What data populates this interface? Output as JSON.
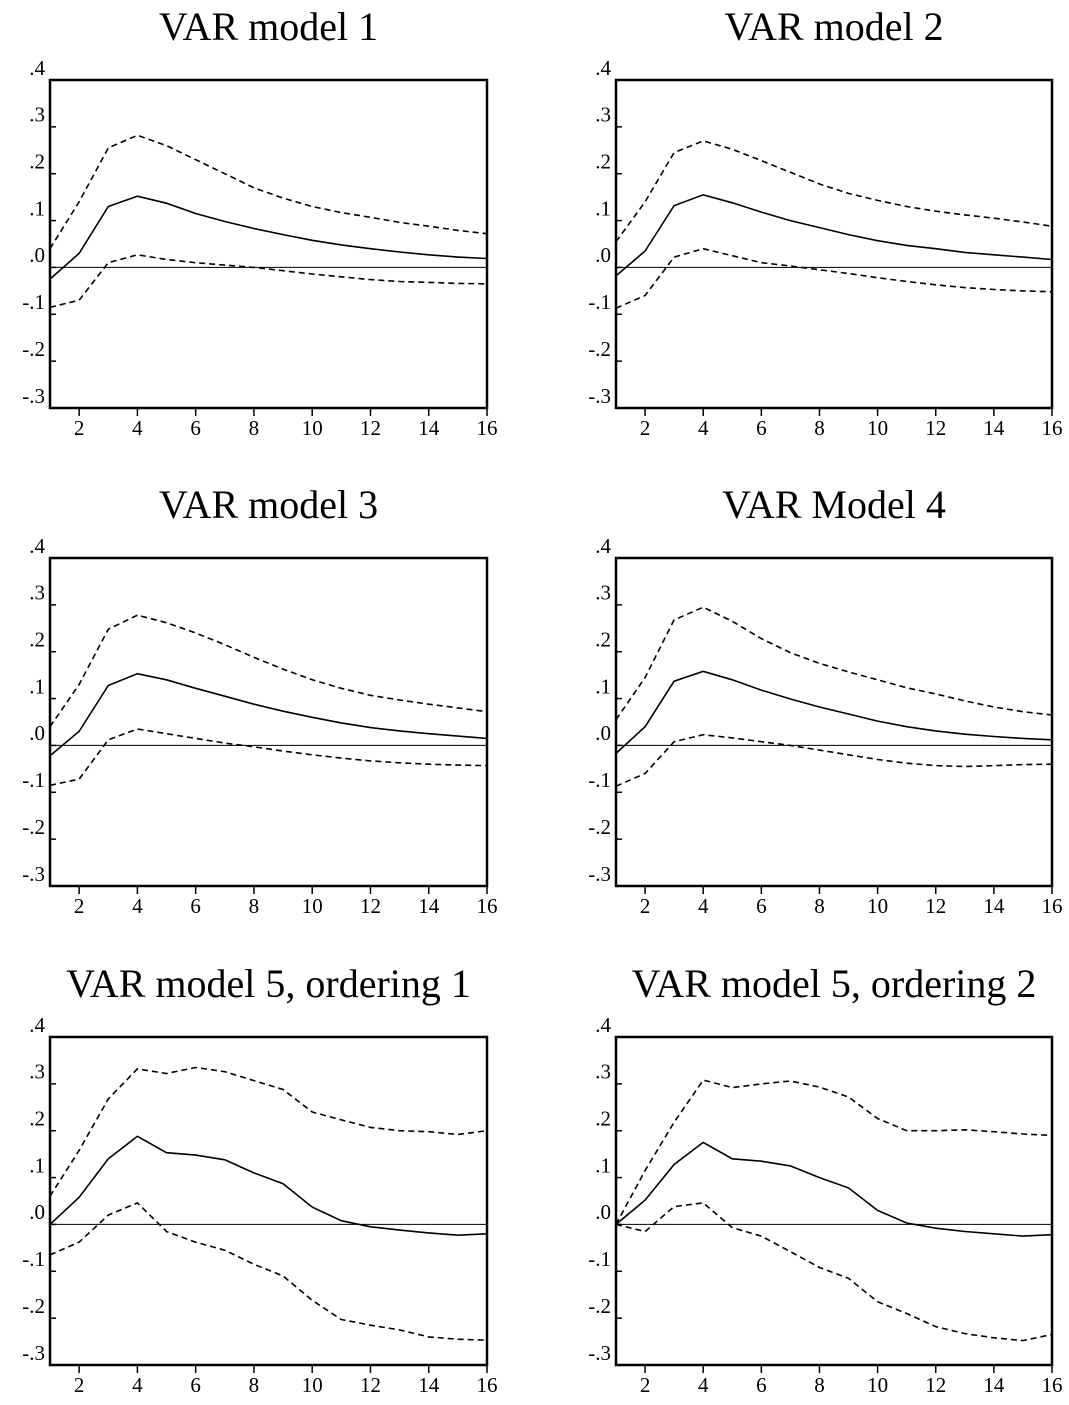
{
  "chart_data": [
    {
      "type": "line",
      "title": "VAR model 1",
      "x": [
        1,
        2,
        3,
        4,
        5,
        6,
        7,
        8,
        9,
        10,
        11,
        12,
        13,
        14,
        15,
        16
      ],
      "xlim": [
        1,
        16
      ],
      "xticks": [
        2,
        4,
        6,
        8,
        10,
        12,
        14,
        16
      ],
      "ylim": [
        -0.3,
        0.4
      ],
      "yticks": [
        {
          "value": -0.3,
          "label": "-.3"
        },
        {
          "value": -0.2,
          "label": "-.2"
        },
        {
          "value": -0.1,
          "label": "-.1"
        },
        {
          "value": 0,
          "label": ".0"
        },
        {
          "value": 0.1,
          "label": ".1"
        },
        {
          "value": 0.2,
          "label": ".2"
        },
        {
          "value": 0.3,
          "label": ".3"
        },
        {
          "value": 0.4,
          "label": ".4"
        }
      ],
      "reference_line": 0,
      "series": [
        {
          "color": "#000000",
          "dash": true,
          "values": [
            0.04,
            0.14,
            0.255,
            0.282,
            0.26,
            0.23,
            0.2,
            0.17,
            0.148,
            0.13,
            0.117,
            0.107,
            0.096,
            0.088,
            0.079,
            0.072
          ]
        },
        {
          "color": "#000000",
          "dash": false,
          "values": [
            -0.025,
            0.03,
            0.13,
            0.152,
            0.137,
            0.115,
            0.098,
            0.083,
            0.07,
            0.058,
            0.048,
            0.04,
            0.033,
            0.027,
            0.022,
            0.019
          ]
        },
        {
          "color": "#000000",
          "dash": true,
          "values": [
            -0.085,
            -0.07,
            0.01,
            0.027,
            0.017,
            0.01,
            0.005,
            0,
            -0.007,
            -0.014,
            -0.02,
            -0.026,
            -0.03,
            -0.032,
            -0.034,
            -0.035
          ]
        }
      ]
    },
    {
      "type": "line",
      "title": "VAR model 2",
      "x": [
        1,
        2,
        3,
        4,
        5,
        6,
        7,
        8,
        9,
        10,
        11,
        12,
        13,
        14,
        15,
        16
      ],
      "xlim": [
        1,
        16
      ],
      "xticks": [
        2,
        4,
        6,
        8,
        10,
        12,
        14,
        16
      ],
      "ylim": [
        -0.3,
        0.4
      ],
      "yticks": [
        {
          "value": -0.3,
          "label": "-.3"
        },
        {
          "value": -0.2,
          "label": "-.2"
        },
        {
          "value": -0.1,
          "label": "-.1"
        },
        {
          "value": 0,
          "label": ".0"
        },
        {
          "value": 0.1,
          "label": ".1"
        },
        {
          "value": 0.2,
          "label": ".2"
        },
        {
          "value": 0.3,
          "label": ".3"
        },
        {
          "value": 0.4,
          "label": ".4"
        }
      ],
      "reference_line": 0,
      "series": [
        {
          "color": "#000000",
          "dash": true,
          "values": [
            0.055,
            0.14,
            0.245,
            0.27,
            0.252,
            0.228,
            0.203,
            0.178,
            0.158,
            0.143,
            0.13,
            0.12,
            0.112,
            0.105,
            0.097,
            0.088
          ]
        },
        {
          "color": "#000000",
          "dash": false,
          "values": [
            -0.018,
            0.035,
            0.132,
            0.155,
            0.138,
            0.118,
            0.1,
            0.085,
            0.07,
            0.057,
            0.047,
            0.04,
            0.032,
            0.027,
            0.022,
            0.017
          ]
        },
        {
          "color": "#000000",
          "dash": true,
          "values": [
            -0.087,
            -0.06,
            0.022,
            0.04,
            0.025,
            0.01,
            0.003,
            -0.005,
            -0.013,
            -0.022,
            -0.03,
            -0.037,
            -0.043,
            -0.047,
            -0.05,
            -0.052
          ]
        }
      ]
    },
    {
      "type": "line",
      "title": "VAR model 3",
      "x": [
        1,
        2,
        3,
        4,
        5,
        6,
        7,
        8,
        9,
        10,
        11,
        12,
        13,
        14,
        15,
        16
      ],
      "xlim": [
        1,
        16
      ],
      "xticks": [
        2,
        4,
        6,
        8,
        10,
        12,
        14,
        16
      ],
      "ylim": [
        -0.3,
        0.4
      ],
      "yticks": [
        {
          "value": -0.3,
          "label": "-.3"
        },
        {
          "value": -0.2,
          "label": "-.2"
        },
        {
          "value": -0.1,
          "label": "-.1"
        },
        {
          "value": 0,
          "label": ".0"
        },
        {
          "value": 0.1,
          "label": ".1"
        },
        {
          "value": 0.2,
          "label": ".2"
        },
        {
          "value": 0.3,
          "label": ".3"
        },
        {
          "value": 0.4,
          "label": ".4"
        }
      ],
      "reference_line": 0,
      "series": [
        {
          "color": "#000000",
          "dash": true,
          "values": [
            0.04,
            0.13,
            0.248,
            0.278,
            0.262,
            0.24,
            0.215,
            0.188,
            0.163,
            0.14,
            0.122,
            0.107,
            0.097,
            0.088,
            0.08,
            0.072
          ]
        },
        {
          "color": "#000000",
          "dash": false,
          "values": [
            -0.022,
            0.03,
            0.128,
            0.153,
            0.14,
            0.122,
            0.105,
            0.088,
            0.073,
            0.06,
            0.048,
            0.038,
            0.031,
            0.025,
            0.02,
            0.015
          ]
        },
        {
          "color": "#000000",
          "dash": true,
          "values": [
            -0.085,
            -0.072,
            0.012,
            0.035,
            0.025,
            0.015,
            0.005,
            -0.003,
            -0.012,
            -0.02,
            -0.027,
            -0.033,
            -0.037,
            -0.04,
            -0.042,
            -0.043
          ]
        }
      ]
    },
    {
      "type": "line",
      "title": "VAR Model 4",
      "x": [
        1,
        2,
        3,
        4,
        5,
        6,
        7,
        8,
        9,
        10,
        11,
        12,
        13,
        14,
        15,
        16
      ],
      "xlim": [
        1,
        16
      ],
      "xticks": [
        2,
        4,
        6,
        8,
        10,
        12,
        14,
        16
      ],
      "ylim": [
        -0.3,
        0.4
      ],
      "yticks": [
        {
          "value": -0.3,
          "label": "-.3"
        },
        {
          "value": -0.2,
          "label": "-.2"
        },
        {
          "value": -0.1,
          "label": "-.1"
        },
        {
          "value": 0,
          "label": ".0"
        },
        {
          "value": 0.1,
          "label": ".1"
        },
        {
          "value": 0.2,
          "label": ".2"
        },
        {
          "value": 0.3,
          "label": ".3"
        },
        {
          "value": 0.4,
          "label": ".4"
        }
      ],
      "reference_line": 0,
      "series": [
        {
          "color": "#000000",
          "dash": true,
          "values": [
            0.055,
            0.145,
            0.268,
            0.295,
            0.265,
            0.228,
            0.198,
            0.175,
            0.157,
            0.14,
            0.123,
            0.11,
            0.095,
            0.082,
            0.072,
            0.065
          ]
        },
        {
          "color": "#000000",
          "dash": false,
          "values": [
            -0.017,
            0.04,
            0.137,
            0.158,
            0.14,
            0.118,
            0.099,
            0.082,
            0.067,
            0.052,
            0.04,
            0.031,
            0.024,
            0.019,
            0.015,
            0.012
          ]
        },
        {
          "color": "#000000",
          "dash": true,
          "values": [
            -0.087,
            -0.06,
            0.008,
            0.023,
            0.016,
            0.008,
            0,
            -0.01,
            -0.02,
            -0.03,
            -0.038,
            -0.043,
            -0.045,
            -0.043,
            -0.041,
            -0.04
          ]
        }
      ]
    },
    {
      "type": "line",
      "title": "VAR model 5, ordering 1",
      "x": [
        1,
        2,
        3,
        4,
        5,
        6,
        7,
        8,
        9,
        10,
        11,
        12,
        13,
        14,
        15,
        16
      ],
      "xlim": [
        1,
        16
      ],
      "xticks": [
        2,
        4,
        6,
        8,
        10,
        12,
        14,
        16
      ],
      "ylim": [
        -0.3,
        0.4
      ],
      "yticks": [
        {
          "value": -0.3,
          "label": "-.3"
        },
        {
          "value": -0.2,
          "label": "-.2"
        },
        {
          "value": -0.1,
          "label": "-.1"
        },
        {
          "value": 0,
          "label": ".0"
        },
        {
          "value": 0.1,
          "label": ".1"
        },
        {
          "value": 0.2,
          "label": ".2"
        },
        {
          "value": 0.3,
          "label": ".3"
        },
        {
          "value": 0.4,
          "label": ".4"
        }
      ],
      "reference_line": 0,
      "series": [
        {
          "color": "#000000",
          "dash": true,
          "values": [
            0.06,
            0.158,
            0.268,
            0.332,
            0.322,
            0.335,
            0.326,
            0.307,
            0.288,
            0.24,
            0.223,
            0.207,
            0.2,
            0.198,
            0.192,
            0.2
          ]
        },
        {
          "color": "#000000",
          "dash": false,
          "values": [
            0,
            0.058,
            0.14,
            0.188,
            0.153,
            0.148,
            0.138,
            0.11,
            0.087,
            0.037,
            0.008,
            -0.005,
            -0.012,
            -0.018,
            -0.023,
            -0.02
          ]
        },
        {
          "color": "#000000",
          "dash": true,
          "values": [
            -0.065,
            -0.038,
            0.02,
            0.046,
            -0.015,
            -0.038,
            -0.055,
            -0.085,
            -0.11,
            -0.162,
            -0.203,
            -0.215,
            -0.225,
            -0.24,
            -0.245,
            -0.247
          ]
        }
      ]
    },
    {
      "type": "line",
      "title": "VAR model 5, ordering 2",
      "x": [
        1,
        2,
        3,
        4,
        5,
        6,
        7,
        8,
        9,
        10,
        11,
        12,
        13,
        14,
        15,
        16
      ],
      "xlim": [
        1,
        16
      ],
      "xticks": [
        2,
        4,
        6,
        8,
        10,
        12,
        14,
        16
      ],
      "ylim": [
        -0.3,
        0.4
      ],
      "yticks": [
        {
          "value": -0.3,
          "label": "-.3"
        },
        {
          "value": -0.2,
          "label": "-.2"
        },
        {
          "value": -0.1,
          "label": "-.1"
        },
        {
          "value": 0,
          "label": ".0"
        },
        {
          "value": 0.1,
          "label": ".1"
        },
        {
          "value": 0.2,
          "label": ".2"
        },
        {
          "value": 0.3,
          "label": ".3"
        },
        {
          "value": 0.4,
          "label": ".4"
        }
      ],
      "reference_line": 0,
      "series": [
        {
          "color": "#000000",
          "dash": true,
          "values": [
            0,
            0.115,
            0.218,
            0.308,
            0.292,
            0.3,
            0.306,
            0.293,
            0.272,
            0.226,
            0.2,
            0.2,
            0.202,
            0.198,
            0.193,
            0.19
          ]
        },
        {
          "color": "#000000",
          "dash": false,
          "values": [
            0,
            0.052,
            0.128,
            0.175,
            0.14,
            0.135,
            0.125,
            0.1,
            0.078,
            0.03,
            0.003,
            -0.008,
            -0.015,
            -0.02,
            -0.025,
            -0.022
          ]
        },
        {
          "color": "#000000",
          "dash": true,
          "values": [
            0,
            -0.015,
            0.038,
            0.046,
            -0.007,
            -0.025,
            -0.058,
            -0.092,
            -0.115,
            -0.165,
            -0.19,
            -0.218,
            -0.233,
            -0.242,
            -0.248,
            -0.235
          ]
        }
      ]
    }
  ]
}
